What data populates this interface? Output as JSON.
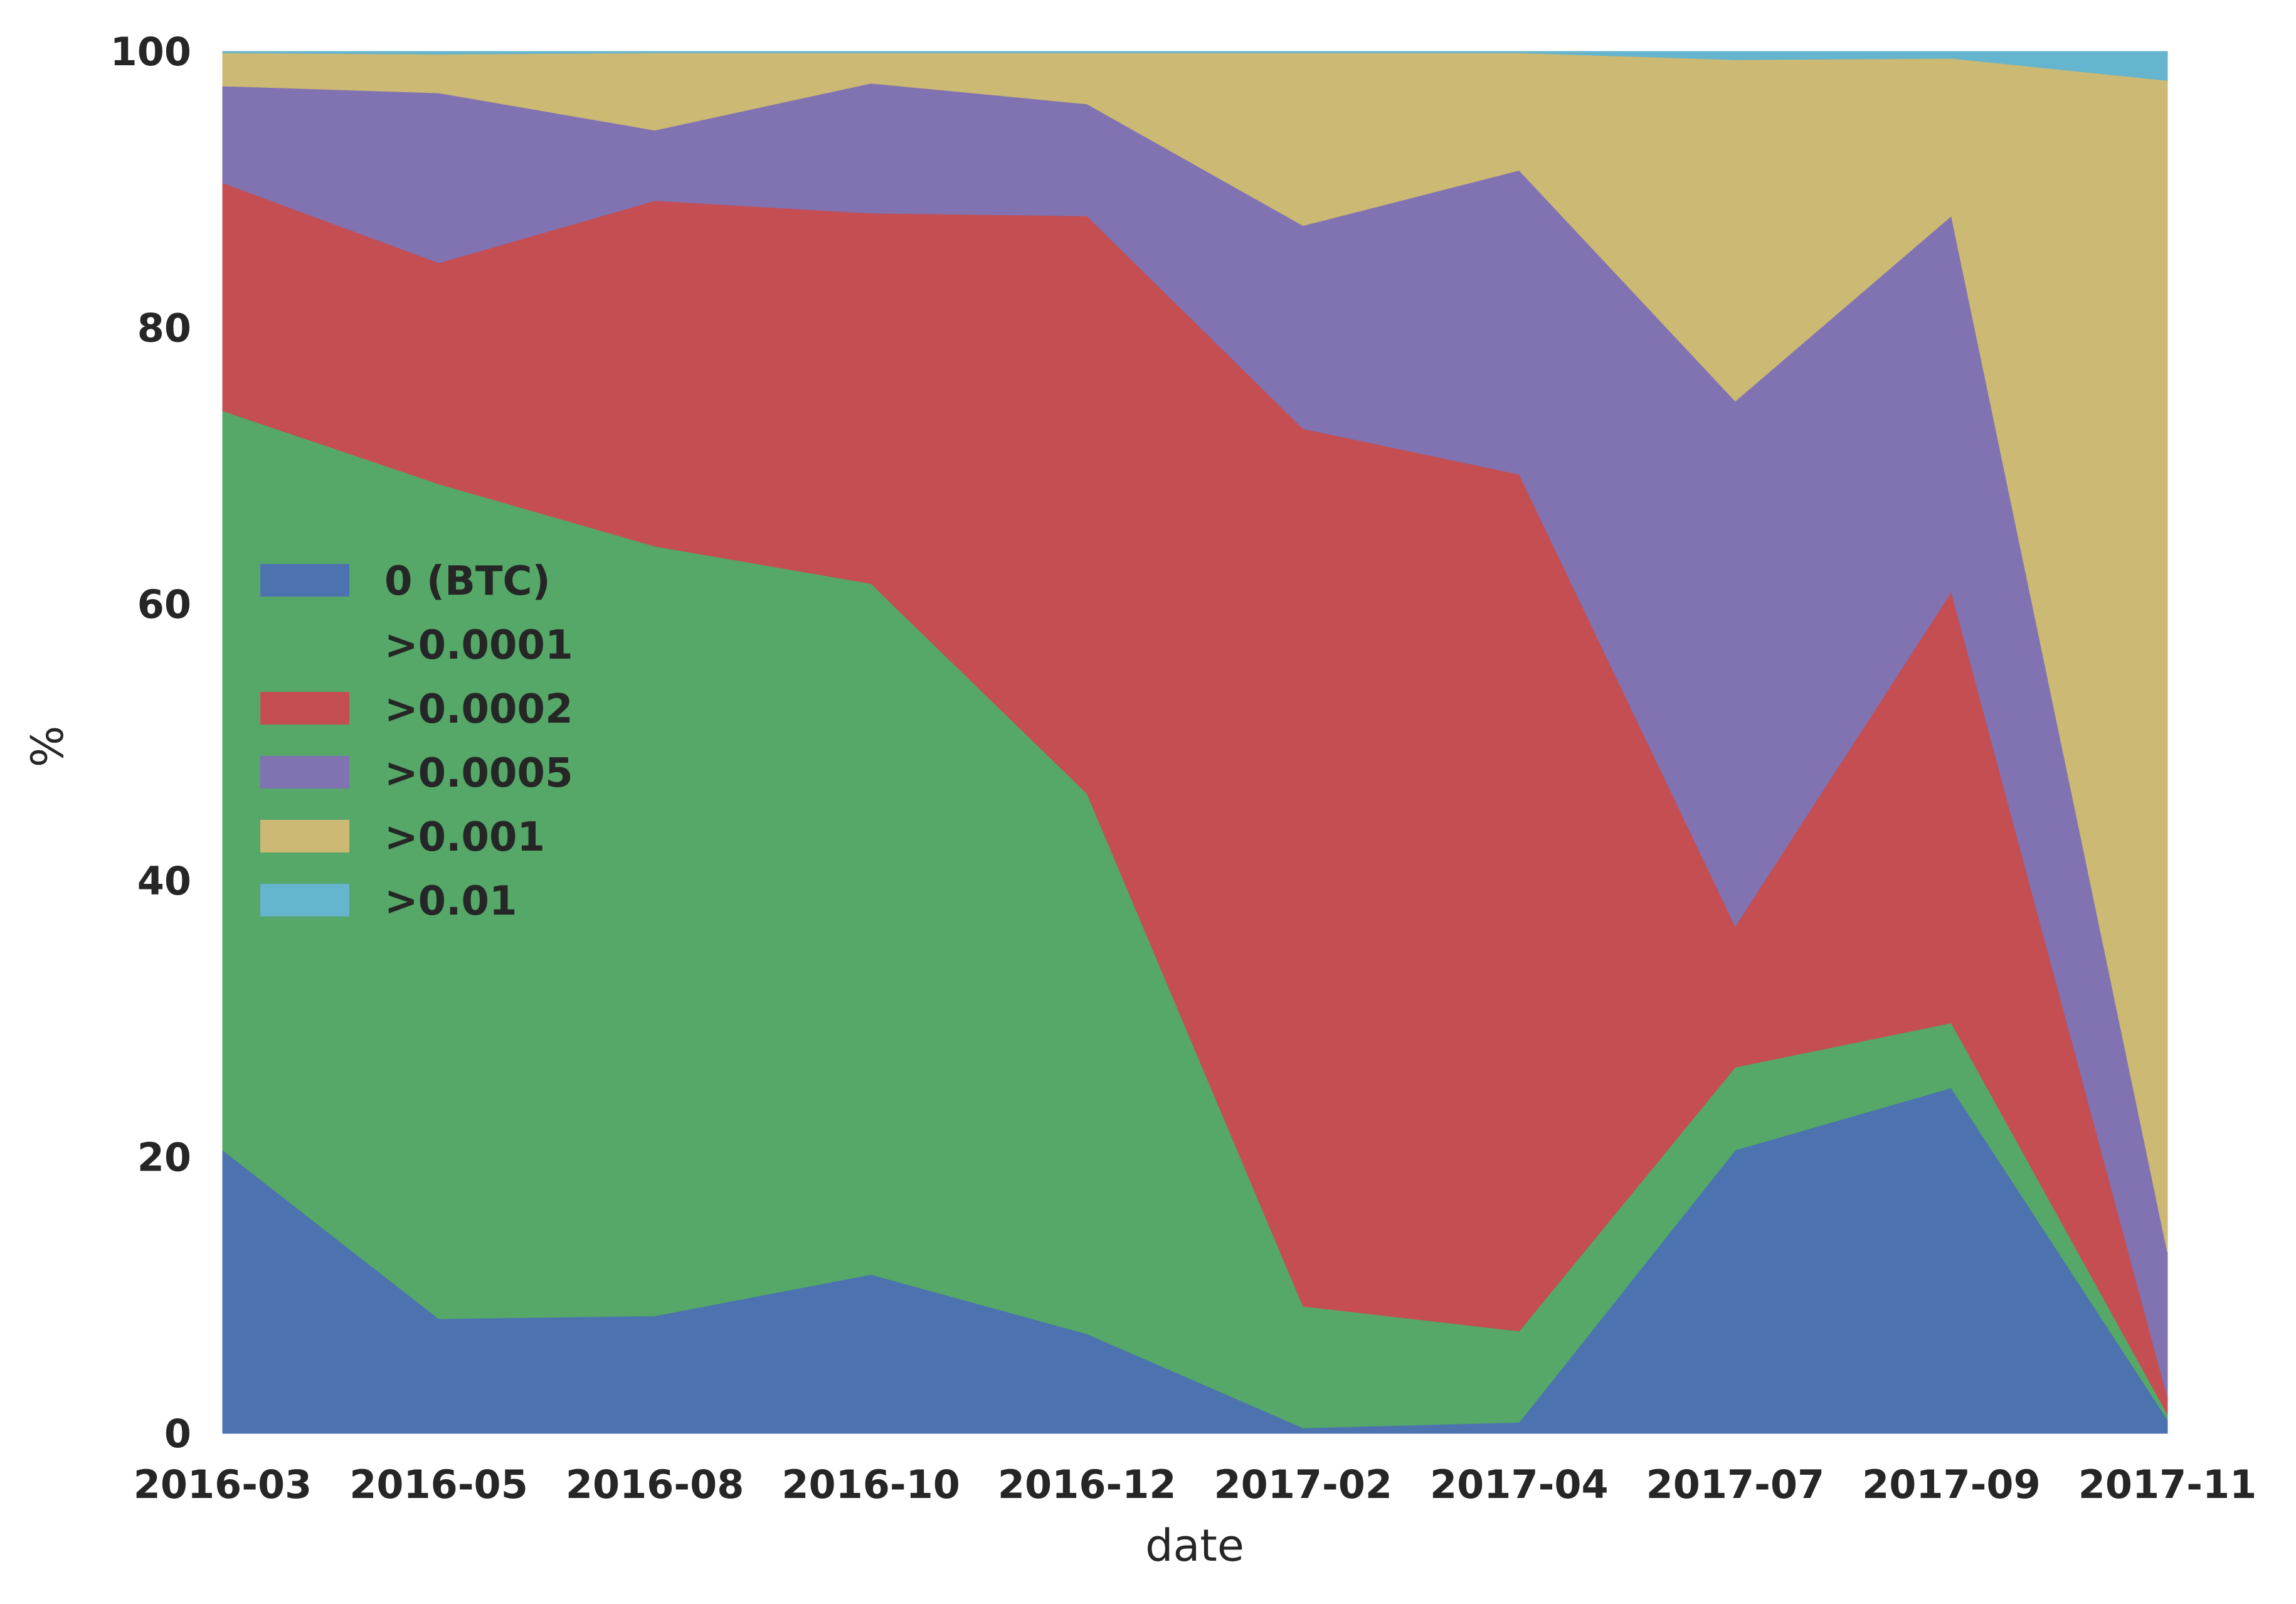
{
  "chart_data": {
    "type": "area",
    "stacked": true,
    "x": [
      "2016-03",
      "2016-05",
      "2016-08",
      "2016-10",
      "2016-12",
      "2017-02",
      "2017-04",
      "2017-07",
      "2017-09",
      "2017-11"
    ],
    "xlabel": "date",
    "ylabel": "%",
    "ylim": [
      0,
      100
    ],
    "yticks": [
      0,
      20,
      40,
      60,
      80,
      100
    ],
    "grid": false,
    "legend_position": "center-left",
    "series": [
      {
        "name": "0 (BTC)",
        "color": "#4c72b0",
        "values": [
          20.5,
          8.3,
          8.5,
          11.5,
          7.2,
          0.4,
          0.8,
          20.5,
          25.0,
          1.0
        ]
      },
      {
        "name": ">0.0001",
        "color": "#55a868",
        "values": [
          53.5,
          60.4,
          55.7,
          50.0,
          39.1,
          8.8,
          6.6,
          6.0,
          4.7,
          0.4
        ]
      },
      {
        "name": ">0.0002",
        "color": "#c44e52",
        "values": [
          16.5,
          16.0,
          25.0,
          26.8,
          41.8,
          63.5,
          62.0,
          10.2,
          31.2,
          1.2
        ]
      },
      {
        "name": ">0.0005",
        "color": "#8172b2",
        "values": [
          7.0,
          12.3,
          5.1,
          9.4,
          8.1,
          14.7,
          22.0,
          38.0,
          27.2,
          10.5
        ]
      },
      {
        "name": ">0.001",
        "color": "#ccb974",
        "values": [
          2.4,
          2.8,
          5.6,
          2.2,
          3.7,
          12.5,
          8.5,
          24.7,
          11.4,
          84.8
        ]
      },
      {
        "name": ">0.01",
        "color": "#64b5cd",
        "values": [
          0.1,
          0.2,
          0.1,
          0.1,
          0.1,
          0.1,
          0.1,
          0.6,
          0.5,
          2.1
        ]
      }
    ]
  }
}
